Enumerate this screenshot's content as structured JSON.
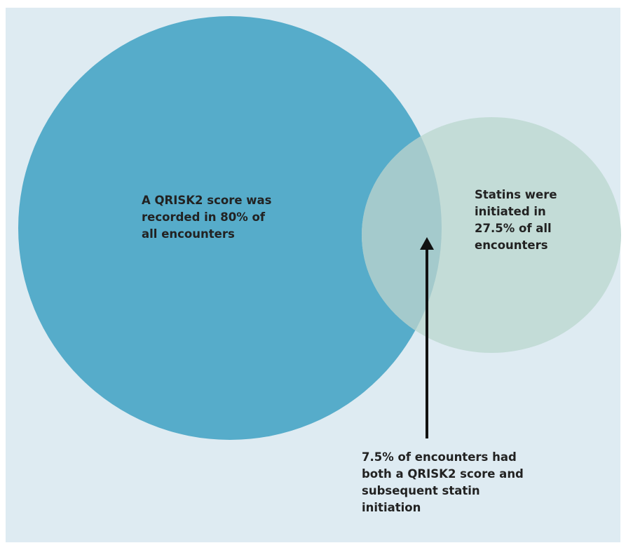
{
  "diagram": {
    "sets": [
      {
        "id": "qrisk2",
        "label": "A QRISK2 score was\nrecorded in 80% of\nall encounters",
        "percent": 80,
        "color": "#56acca"
      },
      {
        "id": "statins",
        "label": "Statins were\ninitiated in\n27.5% of all\nencounters",
        "percent": 27.5,
        "color": "#c3dcd7"
      }
    ],
    "intersection": {
      "label": "7.5% of encounters had\nboth a QRISK2 score and\nsubsequent statin\ninitiation",
      "percent": 7.5,
      "color": "#a4cacc"
    },
    "arrow_color": "#111111",
    "background_color": "#deebf2"
  }
}
